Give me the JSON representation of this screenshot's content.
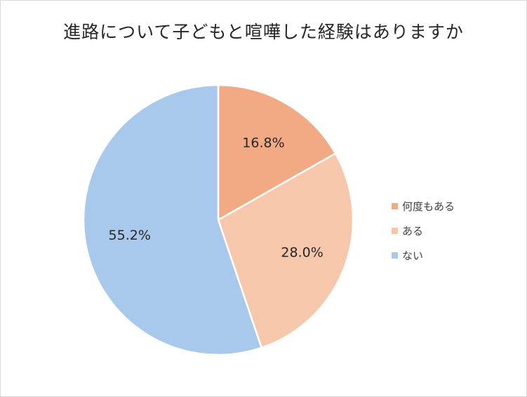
{
  "chart_data": {
    "type": "pie",
    "title": "進路について子どもと喧嘩した経験はありますか",
    "categories": [
      "何度もある",
      "ある",
      "ない"
    ],
    "values": [
      16.8,
      28.0,
      55.2
    ],
    "labels": [
      "16.8%",
      "28.0%",
      "55.2%"
    ],
    "colors": [
      "#f2aa84",
      "#f7c7ac",
      "#a9c9ec"
    ],
    "legend_position": "right"
  }
}
